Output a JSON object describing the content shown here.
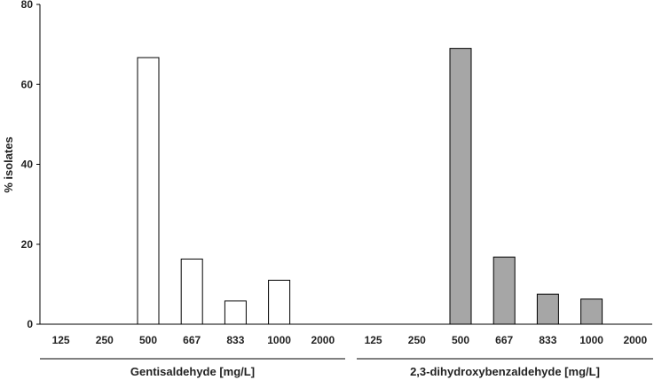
{
  "chart_data": {
    "type": "bar",
    "ylabel": "% isolates",
    "ylim": [
      0,
      80
    ],
    "yticks": [
      "0",
      "20",
      "40",
      "60",
      "80"
    ],
    "grid": false,
    "groups": [
      {
        "name": "Gentisaldehyde [mg/L]",
        "categories": [
          "125",
          "250",
          "500",
          "667",
          "833",
          "1000",
          "2000"
        ],
        "values": [
          0,
          0,
          66.7,
          16.3,
          5.8,
          11.0,
          0
        ],
        "color": "#ffffff"
      },
      {
        "name": "2,3-dihydroxybenzaldehyde [mg/L]",
        "categories": [
          "125",
          "250",
          "500",
          "667",
          "833",
          "1000",
          "2000"
        ],
        "values": [
          0,
          0,
          69.0,
          16.8,
          7.5,
          6.3,
          0
        ],
        "color": "#a6a6a6"
      }
    ]
  }
}
